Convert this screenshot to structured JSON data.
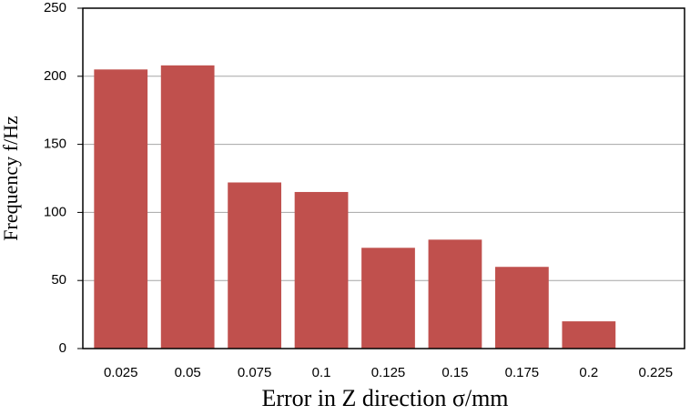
{
  "chart_data": {
    "type": "bar",
    "x_label": "Error in Z direction σ/mm",
    "y_label": "Frequency f/Hz",
    "categories": [
      "0.025",
      "0.05",
      "0.075",
      "0.1",
      "0.125",
      "0.15",
      "0.175",
      "0.2",
      "0.225"
    ],
    "values": [
      205,
      208,
      122,
      115,
      74,
      80,
      60,
      20,
      0
    ],
    "color": "#c0504d",
    "ylim": [
      0,
      250
    ],
    "yticks": [
      0,
      50,
      100,
      150,
      200,
      250
    ],
    "grid": true
  }
}
